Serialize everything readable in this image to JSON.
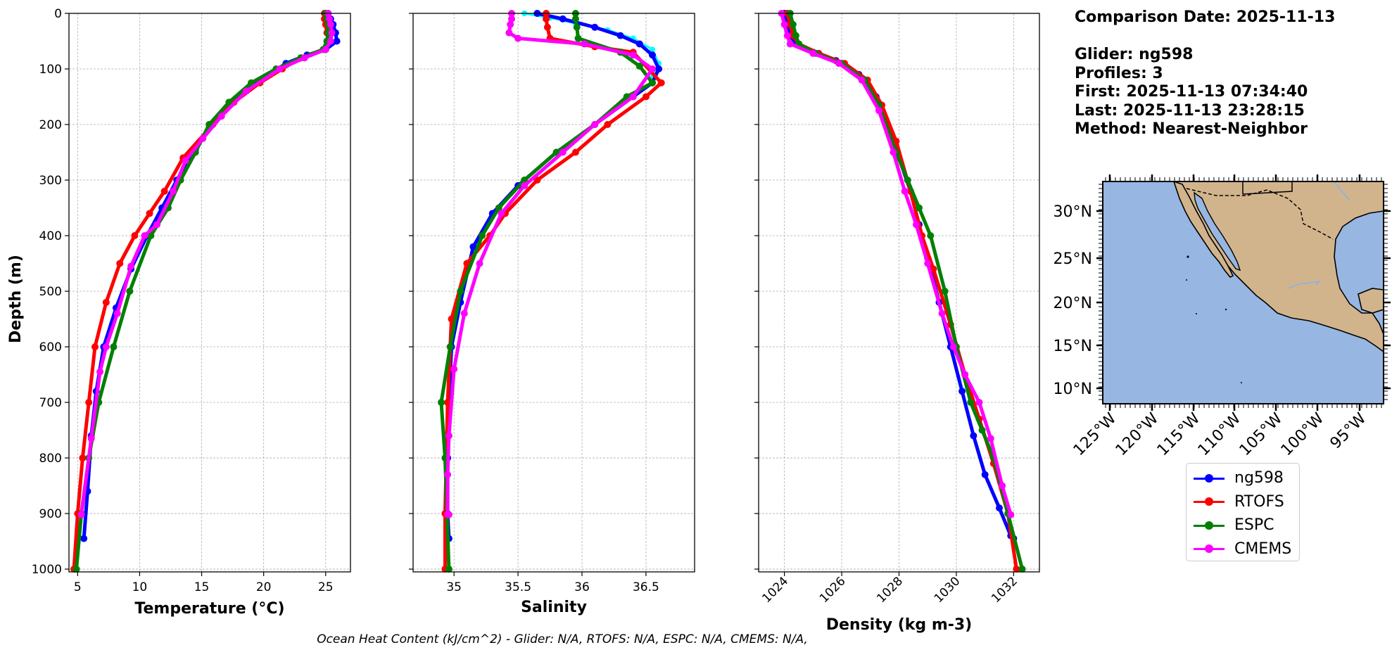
{
  "info": {
    "comparison_date": "Comparison Date: 2025-11-13",
    "glider": "Glider: ng598",
    "profiles": "Profiles: 3",
    "first": "First: 2025-11-13 07:34:40",
    "last": "Last: 2025-11-13 23:28:15",
    "method": "Method: Nearest-Neighbor"
  },
  "footer": "Ocean Heat Content (kJ/cm^2) - Glider: N/A,  RTOFS: N/A,  ESPC: N/A,  CMEMS: N/A,",
  "legend": [
    {
      "name": "ng598",
      "color": "#0000ff"
    },
    {
      "name": "RTOFS",
      "color": "#ff0000"
    },
    {
      "name": "ESPC",
      "color": "#008000"
    },
    {
      "name": "CMEMS",
      "color": "#ff00ff"
    }
  ],
  "map": {
    "lat_labels": [
      "30°N",
      "25°N",
      "20°N",
      "15°N",
      "10°N"
    ],
    "lon_labels": [
      "125°W",
      "120°W",
      "115°W",
      "110°W",
      "105°W",
      "100°W",
      "95°W"
    ],
    "ocean_color": "#97b6e1",
    "land_color": "#d2b48c"
  },
  "chart_data": [
    {
      "type": "line",
      "xlabel": "Temperature (°C)",
      "ylabel": "Depth (m)",
      "xlim": [
        4.3,
        27
      ],
      "ylim": [
        1005,
        0
      ],
      "xticks": [
        5,
        10,
        15,
        20,
        25
      ],
      "yticks": [
        0,
        100,
        200,
        300,
        400,
        500,
        600,
        700,
        800,
        900,
        1000
      ],
      "grid": true,
      "series": [
        {
          "name": "ng598",
          "color": "#0000ff",
          "markersize": 5,
          "linewidth": 5,
          "x": [
            25.2,
            25.4,
            25.6,
            25.8,
            25.9,
            25.0,
            23.5,
            21.8,
            20.5,
            18.2,
            16.0,
            14.5,
            13.0,
            11.8,
            10.6,
            9.3,
            8.1,
            7.1,
            6.5,
            6.1,
            5.8,
            5.5
          ],
          "y": [
            0,
            10,
            20,
            35,
            50,
            65,
            75,
            90,
            110,
            145,
            195,
            245,
            300,
            350,
            400,
            460,
            530,
            600,
            680,
            760,
            860,
            945
          ]
        },
        {
          "name": "RTOFS",
          "color": "#ff0000",
          "markersize": 5,
          "linewidth": 5,
          "x": [
            24.9,
            24.9,
            25.0,
            25.1,
            25.2,
            25.0,
            23.0,
            21.5,
            19.7,
            17.6,
            15.9,
            13.5,
            12.0,
            10.8,
            9.6,
            8.4,
            7.3,
            6.4,
            5.9,
            5.4,
            5.0,
            4.7
          ],
          "y": [
            0,
            10,
            20,
            35,
            50,
            65,
            80,
            100,
            125,
            160,
            200,
            260,
            320,
            360,
            400,
            450,
            520,
            600,
            700,
            800,
            900,
            1000
          ]
        },
        {
          "name": "ESPC",
          "color": "#008000",
          "markersize": 5,
          "linewidth": 5,
          "x": [
            25.0,
            25.1,
            25.2,
            25.2,
            25.1,
            24.8,
            23.0,
            21.0,
            19.0,
            17.2,
            15.6,
            14.5,
            13.3,
            12.3,
            10.9,
            9.2,
            7.9,
            6.7,
            5.9,
            5.3,
            4.9
          ],
          "y": [
            0,
            10,
            20,
            35,
            50,
            65,
            80,
            100,
            125,
            160,
            200,
            250,
            300,
            350,
            400,
            500,
            600,
            700,
            800,
            900,
            1000
          ]
        },
        {
          "name": "CMEMS",
          "color": "#ff00ff",
          "markersize": 5,
          "linewidth": 5,
          "x": [
            25.2,
            25.3,
            25.4,
            25.5,
            25.4,
            25.0,
            23.3,
            21.3,
            18.6,
            16.6,
            15.1,
            13.7,
            12.7,
            11.4,
            10.4,
            9.3,
            8.2,
            7.3,
            6.8,
            6.1,
            5.3
          ],
          "y": [
            0,
            10,
            20,
            35,
            50,
            65,
            80,
            100,
            140,
            185,
            225,
            265,
            320,
            380,
            400,
            455,
            540,
            600,
            645,
            765,
            902
          ]
        }
      ]
    },
    {
      "type": "line",
      "xlabel": "Salinity",
      "ylabel": "",
      "xlim": [
        34.68,
        36.88
      ],
      "ylim": [
        1005,
        0
      ],
      "xticks": [
        35.0,
        35.5,
        36.0,
        36.5
      ],
      "yticks": [
        0,
        100,
        200,
        300,
        400,
        500,
        600,
        700,
        800,
        900,
        1000
      ],
      "grid": true,
      "series": [
        {
          "name": "ng598-cast",
          "color": "#00ffff",
          "markersize": 4,
          "linewidth": 3,
          "x": [
            35.55,
            35.75,
            35.95,
            36.2,
            36.4,
            36.55,
            36.6,
            36.55
          ],
          "y": [
            0,
            8,
            18,
            30,
            45,
            65,
            90,
            115
          ]
        },
        {
          "name": "ng598",
          "color": "#0000ff",
          "markersize": 5,
          "linewidth": 5,
          "x": [
            35.65,
            35.85,
            36.1,
            36.3,
            36.45,
            36.55,
            36.6,
            36.55,
            36.4,
            36.1,
            35.8,
            35.5,
            35.3,
            35.15,
            35.05,
            34.98,
            34.96,
            34.95,
            34.95,
            34.96
          ],
          "y": [
            0,
            10,
            25,
            40,
            55,
            75,
            100,
            125,
            150,
            200,
            250,
            310,
            360,
            420,
            520,
            600,
            700,
            800,
            900,
            945
          ]
        },
        {
          "name": "RTOFS",
          "color": "#ff0000",
          "markersize": 5,
          "linewidth": 5,
          "x": [
            35.72,
            35.72,
            35.73,
            35.75,
            36.1,
            36.4,
            36.62,
            36.5,
            36.2,
            35.95,
            35.65,
            35.4,
            35.28,
            35.1,
            34.98,
            34.95,
            34.94,
            34.93,
            34.93
          ],
          "y": [
            0,
            10,
            25,
            45,
            60,
            70,
            125,
            150,
            200,
            250,
            300,
            360,
            400,
            450,
            550,
            700,
            800,
            900,
            1000
          ]
        },
        {
          "name": "ESPC",
          "color": "#008000",
          "markersize": 5,
          "linewidth": 5,
          "x": [
            35.95,
            35.95,
            35.96,
            35.97,
            36.3,
            36.45,
            36.55,
            36.35,
            36.1,
            35.8,
            35.55,
            35.35,
            35.22,
            35.05,
            34.97,
            34.9,
            34.93,
            34.96
          ],
          "y": [
            0,
            10,
            25,
            45,
            70,
            95,
            125,
            150,
            200,
            250,
            300,
            350,
            400,
            500,
            600,
            700,
            800,
            1000
          ]
        },
        {
          "name": "CMEMS",
          "color": "#ff00ff",
          "markersize": 5,
          "linewidth": 5,
          "x": [
            35.45,
            35.45,
            35.44,
            35.43,
            35.5,
            36.02,
            36.4,
            36.55,
            36.4,
            36.1,
            35.85,
            35.55,
            35.37,
            35.2,
            35.08,
            35.0,
            34.96,
            34.95,
            34.95,
            34.96
          ],
          "y": [
            0,
            10,
            20,
            35,
            45,
            55,
            75,
            100,
            150,
            200,
            250,
            310,
            360,
            450,
            540,
            640,
            760,
            830,
            902,
            902
          ]
        }
      ]
    },
    {
      "type": "line",
      "xlabel": "Density (kg m-3)",
      "ylabel": "",
      "xlim": [
        1023.1,
        1032.9
      ],
      "ylim": [
        1005,
        0
      ],
      "xticks": [
        1024,
        1026,
        1028,
        1030,
        1032
      ],
      "yticks": [
        0,
        100,
        200,
        300,
        400,
        500,
        600,
        700,
        800,
        900,
        1000
      ],
      "grid": true,
      "series": [
        {
          "name": "ng598",
          "color": "#0000ff",
          "markersize": 5,
          "linewidth": 5,
          "x": [
            1024.0,
            1024.1,
            1024.2,
            1024.4,
            1025.0,
            1025.8,
            1026.6,
            1027.2,
            1027.6,
            1028.0,
            1028.4,
            1028.7,
            1029.0,
            1029.4,
            1029.8,
            1030.2,
            1030.6,
            1031.0,
            1031.5,
            1031.9,
            1032.0
          ],
          "y": [
            0,
            20,
            40,
            55,
            70,
            85,
            110,
            150,
            200,
            260,
            320,
            380,
            440,
            520,
            600,
            680,
            760,
            830,
            890,
            940,
            945
          ]
        },
        {
          "name": "RTOFS",
          "color": "#ff0000",
          "markersize": 5,
          "linewidth": 5,
          "x": [
            1024.1,
            1024.2,
            1024.3,
            1024.5,
            1025.2,
            1026.1,
            1026.9,
            1027.4,
            1027.9,
            1028.4,
            1028.8,
            1029.2,
            1029.8,
            1030.3,
            1030.8,
            1031.3,
            1031.8,
            1032.1
          ],
          "y": [
            0,
            20,
            40,
            55,
            72,
            90,
            120,
            165,
            230,
            320,
            400,
            460,
            560,
            650,
            730,
            810,
            900,
            1000
          ]
        },
        {
          "name": "ESPC",
          "color": "#008000",
          "markersize": 5,
          "linewidth": 5,
          "x": [
            1024.2,
            1024.3,
            1024.4,
            1024.5,
            1025.1,
            1026.0,
            1026.8,
            1027.3,
            1027.9,
            1028.3,
            1028.7,
            1029.1,
            1029.6,
            1030.0,
            1030.5,
            1030.9,
            1031.3,
            1031.8,
            1032.3
          ],
          "y": [
            0,
            20,
            40,
            55,
            72,
            90,
            120,
            165,
            250,
            300,
            350,
            400,
            500,
            600,
            700,
            750,
            800,
            900,
            1000
          ]
        },
        {
          "name": "CMEMS",
          "color": "#ff00ff",
          "markersize": 5,
          "linewidth": 5,
          "x": [
            1023.9,
            1024.0,
            1024.1,
            1024.2,
            1025.0,
            1025.9,
            1026.7,
            1027.3,
            1027.8,
            1028.2,
            1028.6,
            1029.0,
            1029.5,
            1029.9,
            1030.3,
            1030.8,
            1031.2,
            1031.6,
            1031.9
          ],
          "y": [
            0,
            20,
            40,
            55,
            72,
            90,
            120,
            175,
            250,
            320,
            380,
            450,
            540,
            600,
            650,
            700,
            765,
            850,
            902
          ]
        }
      ]
    }
  ]
}
